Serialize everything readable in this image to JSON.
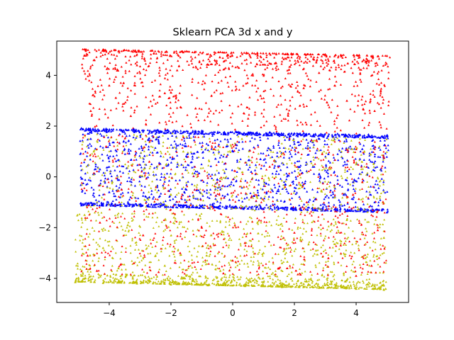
{
  "chart_data": {
    "type": "scatter",
    "title": "Sklearn PCA 3d x and y",
    "xlabel": "",
    "ylabel": "",
    "xlim": [
      -5.7,
      5.7
    ],
    "ylim": [
      -4.95,
      5.35
    ],
    "xticks": [
      -4,
      -2,
      0,
      2,
      4
    ],
    "xtick_labels": [
      "−4",
      "−2",
      "0",
      "2",
      "4"
    ],
    "yticks": [
      -4,
      -2,
      0,
      2,
      4
    ],
    "ytick_labels": [
      "−4",
      "−2",
      "0",
      "2",
      "4"
    ],
    "grid": false,
    "legend": "none",
    "marker": "triangle-up",
    "series": [
      {
        "color": "#ff0000",
        "values": [
          {
            "x": -4.8,
            "y": 5.03
          },
          {
            "x": -4.2,
            "y": 5.02
          },
          {
            "x": -3.5,
            "y": 5.0
          },
          {
            "x": -2.6,
            "y": 4.98
          },
          {
            "x": -1.5,
            "y": 4.95
          },
          {
            "x": -0.4,
            "y": 4.92
          },
          {
            "x": 0.8,
            "y": 4.89
          },
          {
            "x": 1.9,
            "y": 4.86
          },
          {
            "x": 3.0,
            "y": 4.83
          },
          {
            "x": 4.1,
            "y": 4.8
          },
          {
            "x": 5.0,
            "y": 4.77
          },
          {
            "x": -4.5,
            "y": 4.6
          },
          {
            "x": -3.1,
            "y": 4.4
          },
          {
            "x": -1.8,
            "y": 4.2
          },
          {
            "x": 0.2,
            "y": 4.3
          },
          {
            "x": 1.4,
            "y": 4.5
          },
          {
            "x": 2.8,
            "y": 4.1
          },
          {
            "x": 4.4,
            "y": 4.4
          },
          {
            "x": -4.0,
            "y": 3.6
          },
          {
            "x": -2.2,
            "y": 3.3
          },
          {
            "x": -0.9,
            "y": 3.7
          },
          {
            "x": 0.9,
            "y": 3.2
          },
          {
            "x": 2.3,
            "y": 3.5
          },
          {
            "x": 3.7,
            "y": 3.0
          },
          {
            "x": 4.8,
            "y": 3.4
          },
          {
            "x": -4.6,
            "y": 2.6
          },
          {
            "x": -3.3,
            "y": 2.4
          },
          {
            "x": -1.2,
            "y": 2.7
          },
          {
            "x": 0.5,
            "y": 2.3
          },
          {
            "x": 1.8,
            "y": 2.5
          },
          {
            "x": 3.3,
            "y": 2.2
          },
          {
            "x": 4.6,
            "y": 2.6
          },
          {
            "x": -4.1,
            "y": 1.2
          },
          {
            "x": -2.7,
            "y": 0.6
          },
          {
            "x": -0.6,
            "y": 1.1
          },
          {
            "x": 1.2,
            "y": 0.4
          },
          {
            "x": 2.9,
            "y": 0.9
          },
          {
            "x": 4.2,
            "y": -0.2
          },
          {
            "x": -3.6,
            "y": -0.5
          },
          {
            "x": -1.4,
            "y": -0.9
          },
          {
            "x": 0.7,
            "y": -0.4
          },
          {
            "x": 2.4,
            "y": -1.0
          },
          {
            "x": 3.9,
            "y": -0.7
          },
          {
            "x": -4.3,
            "y": -1.8
          },
          {
            "x": -2.9,
            "y": -2.3
          },
          {
            "x": -1.0,
            "y": -2.0
          },
          {
            "x": 0.4,
            "y": -2.6
          },
          {
            "x": 2.0,
            "y": -2.2
          },
          {
            "x": 3.5,
            "y": -2.7
          },
          {
            "x": 4.7,
            "y": -2.1
          },
          {
            "x": -4.7,
            "y": -3.1
          },
          {
            "x": -3.2,
            "y": -3.4
          },
          {
            "x": -1.7,
            "y": -3.0
          },
          {
            "x": 0.0,
            "y": -3.3
          },
          {
            "x": 1.5,
            "y": -3.6
          },
          {
            "x": 3.1,
            "y": -3.2
          },
          {
            "x": 4.5,
            "y": -3.5
          },
          {
            "x": -4.4,
            "y": -3.7
          },
          {
            "x": -2.4,
            "y": -3.75
          },
          {
            "x": -0.3,
            "y": -3.8
          },
          {
            "x": 2.2,
            "y": -3.85
          },
          {
            "x": 4.0,
            "y": -3.9
          }
        ]
      },
      {
        "color": "#0000ff",
        "values": [
          {
            "x": -4.9,
            "y": 1.92
          },
          {
            "x": -4.1,
            "y": 1.9
          },
          {
            "x": -3.2,
            "y": 1.88
          },
          {
            "x": -2.1,
            "y": 1.85
          },
          {
            "x": -1.0,
            "y": 1.82
          },
          {
            "x": 0.1,
            "y": 1.79
          },
          {
            "x": 1.2,
            "y": 1.76
          },
          {
            "x": 2.3,
            "y": 1.73
          },
          {
            "x": 3.4,
            "y": 1.7
          },
          {
            "x": 4.4,
            "y": 1.67
          },
          {
            "x": 5.0,
            "y": 1.64
          },
          {
            "x": -4.6,
            "y": 1.5
          },
          {
            "x": -3.5,
            "y": 1.1
          },
          {
            "x": -2.4,
            "y": 1.4
          },
          {
            "x": -1.3,
            "y": 0.8
          },
          {
            "x": -0.2,
            "y": 1.2
          },
          {
            "x": 0.9,
            "y": 0.7
          },
          {
            "x": 2.0,
            "y": 1.3
          },
          {
            "x": 3.1,
            "y": 0.9
          },
          {
            "x": 4.2,
            "y": 1.1
          },
          {
            "x": -4.3,
            "y": 0.3
          },
          {
            "x": -3.0,
            "y": 0.0
          },
          {
            "x": -1.8,
            "y": 0.4
          },
          {
            "x": -0.5,
            "y": -0.1
          },
          {
            "x": 0.6,
            "y": 0.2
          },
          {
            "x": 1.7,
            "y": -0.3
          },
          {
            "x": 2.8,
            "y": 0.1
          },
          {
            "x": 3.9,
            "y": -0.2
          },
          {
            "x": 4.8,
            "y": 0.3
          },
          {
            "x": -4.0,
            "y": -0.6
          },
          {
            "x": -2.7,
            "y": -0.8
          },
          {
            "x": -1.5,
            "y": -0.5
          },
          {
            "x": -0.1,
            "y": -0.9
          },
          {
            "x": 1.1,
            "y": -0.6
          },
          {
            "x": 2.5,
            "y": -0.9
          },
          {
            "x": 3.6,
            "y": -0.7
          },
          {
            "x": 4.6,
            "y": -1.0
          },
          {
            "x": -4.9,
            "y": -1.12
          },
          {
            "x": -3.8,
            "y": -1.15
          },
          {
            "x": -2.6,
            "y": -1.18
          },
          {
            "x": -1.4,
            "y": -1.2
          },
          {
            "x": -0.2,
            "y": -1.23
          },
          {
            "x": 1.0,
            "y": -1.26
          },
          {
            "x": 2.2,
            "y": -1.29
          },
          {
            "x": 3.4,
            "y": -1.32
          },
          {
            "x": 4.5,
            "y": -1.35
          },
          {
            "x": 5.0,
            "y": -1.4
          }
        ]
      },
      {
        "color": "#bfbf00",
        "values": [
          {
            "x": -4.5,
            "y": 1.0
          },
          {
            "x": -3.1,
            "y": 1.6
          },
          {
            "x": -1.6,
            "y": 1.0
          },
          {
            "x": 0.3,
            "y": 1.5
          },
          {
            "x": 2.6,
            "y": 1.4
          },
          {
            "x": 4.0,
            "y": 0.5
          },
          {
            "x": -3.9,
            "y": -0.2
          },
          {
            "x": -2.0,
            "y": -0.7
          },
          {
            "x": 1.4,
            "y": 0.0
          },
          {
            "x": 3.3,
            "y": -0.4
          },
          {
            "x": -4.8,
            "y": -1.5
          },
          {
            "x": -3.4,
            "y": -1.9
          },
          {
            "x": -1.9,
            "y": -1.6
          },
          {
            "x": -0.7,
            "y": -2.3
          },
          {
            "x": 0.8,
            "y": -1.8
          },
          {
            "x": 2.2,
            "y": -2.5
          },
          {
            "x": 3.7,
            "y": -1.7
          },
          {
            "x": 4.9,
            "y": -2.4
          },
          {
            "x": -4.2,
            "y": -2.8
          },
          {
            "x": -2.5,
            "y": -3.1
          },
          {
            "x": -0.8,
            "y": -2.7
          },
          {
            "x": 1.0,
            "y": -3.0
          },
          {
            "x": 2.7,
            "y": -2.9
          },
          {
            "x": 4.3,
            "y": -3.2
          },
          {
            "x": -4.9,
            "y": -3.9
          },
          {
            "x": -3.7,
            "y": -3.6
          },
          {
            "x": -2.2,
            "y": -3.5
          },
          {
            "x": -0.4,
            "y": -3.7
          },
          {
            "x": 1.6,
            "y": -3.4
          },
          {
            "x": 3.6,
            "y": -3.8
          },
          {
            "x": -5.1,
            "y": -4.15
          },
          {
            "x": -4.2,
            "y": -4.18
          },
          {
            "x": -3.1,
            "y": -4.2
          },
          {
            "x": -2.0,
            "y": -4.24
          },
          {
            "x": -0.8,
            "y": -4.27
          },
          {
            "x": 0.4,
            "y": -4.3
          },
          {
            "x": 1.6,
            "y": -4.34
          },
          {
            "x": 2.8,
            "y": -4.37
          },
          {
            "x": 4.0,
            "y": -4.41
          },
          {
            "x": 4.9,
            "y": -4.45
          },
          {
            "x": -4.6,
            "y": -4.05
          },
          {
            "x": -2.7,
            "y": -4.1
          },
          {
            "x": -0.2,
            "y": -4.15
          },
          {
            "x": 2.3,
            "y": -4.22
          },
          {
            "x": 4.6,
            "y": -4.3
          }
        ]
      }
    ]
  }
}
